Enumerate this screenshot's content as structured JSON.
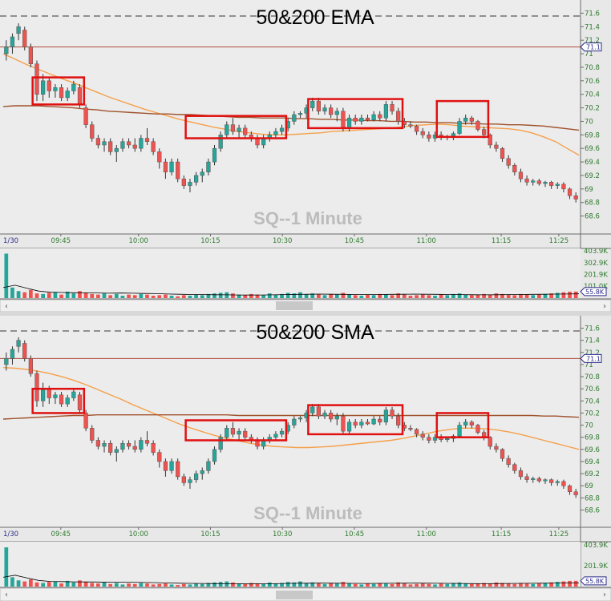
{
  "colors": {
    "up": "#26a69a",
    "down": "#ef5350",
    "wick": "#333333",
    "ema50": "#f5a04a",
    "ema200": "#a0522d",
    "box": "#e01010",
    "ref_line": "#b04a3a",
    "volume_ma": "#000000",
    "axis_text": "#2f7a2f",
    "badge": "#2a2a8a"
  },
  "chart_data": [
    {
      "type": "candlestick",
      "title": "50&200 EMA",
      "watermark": "SQ--1 Minute",
      "date_label": "1/30",
      "time_labels": [
        "09:45",
        "10:00",
        "10:15",
        "10:30",
        "10:45",
        "11:00",
        "11:15",
        "11:25"
      ],
      "y_ticks": [
        "71.6",
        "71.4",
        "71.2",
        "71",
        "70.8",
        "70.6",
        "70.4",
        "70.2",
        "70",
        "69.8",
        "69.6",
        "69.4",
        "69.2",
        "69",
        "68.8",
        "68.6"
      ],
      "ylim": [
        68.5,
        71.7
      ],
      "reference_price": 71.1,
      "reference_badge": "71.1",
      "last_price": 68.85,
      "candles": [
        [
          71.0,
          71.2,
          70.9,
          71.1
        ],
        [
          71.1,
          71.3,
          71.0,
          71.25
        ],
        [
          71.3,
          71.45,
          71.2,
          71.4
        ],
        [
          71.35,
          71.4,
          71.05,
          71.1
        ],
        [
          71.1,
          71.15,
          70.8,
          70.85
        ],
        [
          70.85,
          70.9,
          70.3,
          70.4
        ],
        [
          70.4,
          70.7,
          70.3,
          70.6
        ],
        [
          70.6,
          70.65,
          70.35,
          70.45
        ],
        [
          70.45,
          70.55,
          70.35,
          70.5
        ],
        [
          70.5,
          70.55,
          70.3,
          70.35
        ],
        [
          70.35,
          70.5,
          70.3,
          70.45
        ],
        [
          70.45,
          70.6,
          70.4,
          70.55
        ],
        [
          70.5,
          70.55,
          70.2,
          70.25
        ],
        [
          70.2,
          70.25,
          69.9,
          69.95
        ],
        [
          69.95,
          70.0,
          69.7,
          69.75
        ],
        [
          69.75,
          69.8,
          69.6,
          69.65
        ],
        [
          69.65,
          69.75,
          69.55,
          69.7
        ],
        [
          69.7,
          69.75,
          69.5,
          69.55
        ],
        [
          69.55,
          69.65,
          69.4,
          69.6
        ],
        [
          69.6,
          69.75,
          69.55,
          69.7
        ],
        [
          69.7,
          69.75,
          69.6,
          69.65
        ],
        [
          69.65,
          69.75,
          69.55,
          69.6
        ],
        [
          69.6,
          69.8,
          69.55,
          69.75
        ],
        [
          69.75,
          69.9,
          69.65,
          69.7
        ],
        [
          69.7,
          69.75,
          69.5,
          69.55
        ],
        [
          69.55,
          69.6,
          69.3,
          69.4
        ],
        [
          69.4,
          69.45,
          69.15,
          69.25
        ],
        [
          69.25,
          69.45,
          69.2,
          69.4
        ],
        [
          69.4,
          69.45,
          69.1,
          69.15
        ],
        [
          69.15,
          69.2,
          69.0,
          69.05
        ],
        [
          69.05,
          69.15,
          68.95,
          69.1
        ],
        [
          69.1,
          69.25,
          69.05,
          69.2
        ],
        [
          69.2,
          69.3,
          69.1,
          69.25
        ],
        [
          69.25,
          69.45,
          69.2,
          69.4
        ],
        [
          69.4,
          69.65,
          69.35,
          69.6
        ],
        [
          69.6,
          69.85,
          69.55,
          69.8
        ],
        [
          69.8,
          70.0,
          69.75,
          69.95
        ],
        [
          69.95,
          70.05,
          69.8,
          69.85
        ],
        [
          69.85,
          69.95,
          69.75,
          69.9
        ],
        [
          69.9,
          69.95,
          69.75,
          69.8
        ],
        [
          69.8,
          69.85,
          69.7,
          69.75
        ],
        [
          69.75,
          69.8,
          69.6,
          69.65
        ],
        [
          69.65,
          69.8,
          69.6,
          69.75
        ],
        [
          69.75,
          69.85,
          69.7,
          69.8
        ],
        [
          69.8,
          69.9,
          69.75,
          69.85
        ],
        [
          69.85,
          69.95,
          69.8,
          69.9
        ],
        [
          69.9,
          70.05,
          69.85,
          70.0
        ],
        [
          70.0,
          70.15,
          69.95,
          70.1
        ],
        [
          70.1,
          70.15,
          70.05,
          70.12
        ],
        [
          70.12,
          70.25,
          70.05,
          70.2
        ],
        [
          70.2,
          70.35,
          70.15,
          70.3
        ],
        [
          70.3,
          70.35,
          70.1,
          70.15
        ],
        [
          70.15,
          70.25,
          70.1,
          70.2
        ],
        [
          70.2,
          70.25,
          70.05,
          70.1
        ],
        [
          70.1,
          70.2,
          70.0,
          70.15
        ],
        [
          70.15,
          70.2,
          69.85,
          69.9
        ],
        [
          69.9,
          70.1,
          69.85,
          70.05
        ],
        [
          70.05,
          70.1,
          69.95,
          70.0
        ],
        [
          70.0,
          70.1,
          69.95,
          70.05
        ],
        [
          70.05,
          70.1,
          70.0,
          70.02
        ],
        [
          70.02,
          70.15,
          70.0,
          70.1
        ],
        [
          70.1,
          70.15,
          70.0,
          70.05
        ],
        [
          70.05,
          70.3,
          70.0,
          70.25
        ],
        [
          70.25,
          70.3,
          70.1,
          70.15
        ],
        [
          70.15,
          70.2,
          69.95,
          70.0
        ],
        [
          70.0,
          70.05,
          69.9,
          69.95
        ],
        [
          69.95,
          70.0,
          69.9,
          69.93
        ],
        [
          69.93,
          69.95,
          69.8,
          69.85
        ],
        [
          69.85,
          69.9,
          69.75,
          69.8
        ],
        [
          69.8,
          69.85,
          69.7,
          69.75
        ],
        [
          69.75,
          69.85,
          69.7,
          69.8
        ],
        [
          69.8,
          69.85,
          69.72,
          69.76
        ],
        [
          69.76,
          69.8,
          69.72,
          69.78
        ],
        [
          69.78,
          69.85,
          69.72,
          69.82
        ],
        [
          69.82,
          70.05,
          69.8,
          70.0
        ],
        [
          70.0,
          70.1,
          69.95,
          70.05
        ],
        [
          70.05,
          70.08,
          69.95,
          70.0
        ],
        [
          70.0,
          70.02,
          69.85,
          69.88
        ],
        [
          69.88,
          69.92,
          69.75,
          69.8
        ],
        [
          69.8,
          69.82,
          69.6,
          69.65
        ],
        [
          69.65,
          69.7,
          69.55,
          69.6
        ],
        [
          69.6,
          69.62,
          69.4,
          69.45
        ],
        [
          69.45,
          69.5,
          69.3,
          69.35
        ],
        [
          69.35,
          69.38,
          69.2,
          69.25
        ],
        [
          69.25,
          69.3,
          69.1,
          69.15
        ],
        [
          69.15,
          69.2,
          69.05,
          69.1
        ],
        [
          69.1,
          69.15,
          69.05,
          69.12
        ],
        [
          69.12,
          69.15,
          69.05,
          69.08
        ],
        [
          69.08,
          69.12,
          69.03,
          69.1
        ],
        [
          69.1,
          69.12,
          69.0,
          69.05
        ],
        [
          69.05,
          69.1,
          69.0,
          69.07
        ],
        [
          69.07,
          69.1,
          68.95,
          69.0
        ],
        [
          69.0,
          69.02,
          68.85,
          68.9
        ],
        [
          68.9,
          68.95,
          68.8,
          68.85
        ]
      ],
      "series": [
        {
          "name": "50 EMA",
          "key": "ma50",
          "values": [
            71.0,
            70.92,
            70.84,
            70.77,
            70.7,
            70.63,
            70.57,
            70.5,
            70.43,
            70.36,
            70.3,
            70.24,
            70.18,
            70.13,
            70.08,
            70.03,
            69.99,
            69.95,
            69.91,
            69.88,
            69.85,
            69.83,
            69.81,
            69.8,
            69.8,
            69.81,
            69.82,
            69.83,
            69.85,
            69.86,
            69.87,
            69.88,
            69.89,
            69.9,
            69.92,
            69.94,
            69.95,
            69.96,
            69.95,
            69.93,
            69.92,
            69.91,
            69.9,
            69.89,
            69.87,
            69.83,
            69.77,
            69.7,
            69.6,
            69.5
          ]
        },
        {
          "name": "200 EMA",
          "key": "ma200",
          "values": [
            70.22,
            70.23,
            70.23,
            70.23,
            70.22,
            70.21,
            70.2,
            70.18,
            70.17,
            70.15,
            70.14,
            70.13,
            70.12,
            70.11,
            70.11,
            70.1,
            70.1,
            70.09,
            70.08,
            70.07,
            70.06,
            70.06,
            70.05,
            70.05,
            70.05,
            70.04,
            70.04,
            70.03,
            70.03,
            70.02,
            70.02,
            70.01,
            70.01,
            70.0,
            70.0,
            69.99,
            69.99,
            69.98,
            69.98,
            69.97,
            69.97,
            69.96,
            69.96,
            69.95,
            69.95,
            69.94,
            69.93,
            69.91,
            69.89,
            69.87
          ]
        }
      ],
      "boxes": [
        {
          "from": 5,
          "to": 12,
          "low": 70.25,
          "high": 70.65
        },
        {
          "from": 30,
          "to": 45,
          "low": 69.75,
          "high": 70.08
        },
        {
          "from": 50,
          "to": 64,
          "low": 69.9,
          "high": 70.33
        },
        {
          "from": 71,
          "to": 78,
          "low": 69.77,
          "high": 70.3
        }
      ],
      "volume": {
        "y_ticks": [
          "403.9K",
          "302.9K",
          "201.9K",
          "101.0K"
        ],
        "max": 403900,
        "last_badge": "55.8K"
      }
    },
    {
      "type": "candlestick",
      "title": "50&200 SMA",
      "watermark": "SQ--1 Minute",
      "date_label": "1/30",
      "time_labels": [
        "09:45",
        "10:00",
        "10:15",
        "10:30",
        "10:45",
        "11:00",
        "11:15",
        "11:25"
      ],
      "y_ticks": [
        "71.6",
        "71.4",
        "71.2",
        "71",
        "70.8",
        "70.6",
        "70.4",
        "70.2",
        "70",
        "69.8",
        "69.6",
        "69.4",
        "69.2",
        "69",
        "68.8",
        "68.6"
      ],
      "ylim": [
        68.5,
        71.7
      ],
      "reference_price": 71.1,
      "reference_badge": "71.1",
      "last_price": 68.85,
      "series": [
        {
          "name": "50 SMA",
          "key": "ma50",
          "values": [
            70.95,
            70.94,
            70.92,
            70.89,
            70.85,
            70.8,
            70.74,
            70.67,
            70.59,
            70.51,
            70.43,
            70.34,
            70.26,
            70.18,
            70.1,
            70.02,
            69.95,
            69.89,
            69.83,
            69.78,
            69.74,
            69.7,
            69.67,
            69.65,
            69.64,
            69.63,
            69.63,
            69.64,
            69.65,
            69.67,
            69.69,
            69.71,
            69.73,
            69.75,
            69.78,
            69.82,
            69.86,
            69.9,
            69.93,
            69.95,
            69.95,
            69.94,
            69.92,
            69.89,
            69.85,
            69.8,
            69.75,
            69.7,
            69.65,
            69.6
          ]
        },
        {
          "name": "200 SMA",
          "key": "ma200",
          "values": [
            70.1,
            70.11,
            70.12,
            70.13,
            70.14,
            70.15,
            70.16,
            70.16,
            70.17,
            70.17,
            70.17,
            70.17,
            70.17,
            70.17,
            70.17,
            70.17,
            70.17,
            70.17,
            70.17,
            70.17,
            70.16,
            70.16,
            70.16,
            70.16,
            70.16,
            70.16,
            70.16,
            70.16,
            70.16,
            70.16,
            70.16,
            70.16,
            70.16,
            70.16,
            70.16,
            70.16,
            70.16,
            70.16,
            70.16,
            70.16,
            70.16,
            70.16,
            70.16,
            70.16,
            70.16,
            70.16,
            70.15,
            70.15,
            70.14,
            70.13
          ]
        }
      ],
      "boxes": [
        {
          "from": 5,
          "to": 12,
          "low": 70.2,
          "high": 70.6
        },
        {
          "from": 30,
          "to": 45,
          "low": 69.75,
          "high": 70.08
        },
        {
          "from": 50,
          "to": 64,
          "low": 69.85,
          "high": 70.33
        },
        {
          "from": 71,
          "to": 78,
          "low": 69.8,
          "high": 70.2
        }
      ],
      "volume": {
        "y_ticks": [
          "403.9K",
          "201.9K"
        ],
        "max": 403900,
        "last_badge": "55.8K"
      }
    }
  ],
  "volumes": [
    380000,
    90000,
    60000,
    50000,
    70000,
    40000,
    35000,
    45000,
    50000,
    30000,
    55000,
    40000,
    60000,
    45000,
    35000,
    30000,
    40000,
    25000,
    35000,
    20000,
    30000,
    25000,
    35000,
    30000,
    20000,
    25000,
    30000,
    20000,
    15000,
    25000,
    20000,
    30000,
    25000,
    35000,
    40000,
    45000,
    50000,
    40000,
    30000,
    25000,
    35000,
    30000,
    25000,
    40000,
    30000,
    35000,
    45000,
    40000,
    50000,
    35000,
    40000,
    30000,
    25000,
    35000,
    30000,
    45000,
    30000,
    25000,
    20000,
    30000,
    25000,
    35000,
    30000,
    25000,
    40000,
    30000,
    20000,
    25000,
    30000,
    25000,
    20000,
    30000,
    25000,
    35000,
    40000,
    30000,
    25000,
    30000,
    35000,
    30000,
    40000,
    35000,
    30000,
    25000,
    35000,
    30000,
    25000,
    30000,
    35000,
    40000,
    45000,
    50000,
    55000,
    55800
  ],
  "volume_ma": [
    90000,
    110000,
    85000,
    60000,
    50000,
    48000,
    46000,
    45000,
    44000,
    42000,
    43000,
    42000,
    40000,
    38000,
    35000,
    33000,
    31000,
    30000,
    29000,
    28000,
    27000,
    26000,
    27000,
    28000,
    30000,
    32000,
    33000,
    34000,
    33000,
    32000,
    31000,
    30000,
    31000,
    32000,
    33000,
    34000,
    33000,
    32000,
    31000,
    30000,
    29000,
    28000,
    29000,
    30000,
    31000,
    32000,
    33000,
    34000,
    35000,
    36000
  ]
}
